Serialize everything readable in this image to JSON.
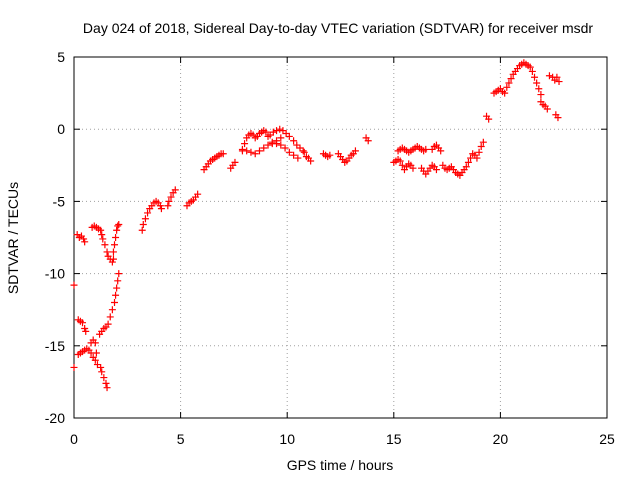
{
  "chart_data": {
    "type": "scatter",
    "title": "Day 024 of 2018, Sidereal Day-to-day VTEC variation (SDTVAR) for receiver msdr",
    "xlabel": "GPS time / hours",
    "ylabel": "SDTVAR / TECUs",
    "xlim": [
      0,
      25
    ],
    "ylim": [
      -20,
      5
    ],
    "xticks": [
      0,
      5,
      10,
      15,
      20,
      25
    ],
    "yticks": [
      -20,
      -15,
      -10,
      -5,
      0,
      5
    ],
    "xtick_labels": [
      "0",
      "5",
      "10",
      "15",
      "20",
      "25"
    ],
    "ytick_labels": [
      "-20",
      "-15",
      "-10",
      "-5",
      "0",
      "5"
    ],
    "grid": true,
    "marker": "plus",
    "color": "#ff0000",
    "series": [
      {
        "name": "SDTVAR",
        "points": [
          [
            0.0,
            -10.8
          ],
          [
            0.0,
            -16.5
          ],
          [
            0.15,
            -7.3
          ],
          [
            0.25,
            -7.5
          ],
          [
            0.35,
            -7.4
          ],
          [
            0.45,
            -7.6
          ],
          [
            0.5,
            -7.8
          ],
          [
            0.2,
            -13.2
          ],
          [
            0.3,
            -13.3
          ],
          [
            0.4,
            -13.4
          ],
          [
            0.5,
            -13.8
          ],
          [
            0.55,
            -14.0
          ],
          [
            0.2,
            -15.6
          ],
          [
            0.3,
            -15.5
          ],
          [
            0.4,
            -15.4
          ],
          [
            0.5,
            -15.3
          ],
          [
            0.6,
            -15.2
          ],
          [
            0.7,
            -15.3
          ],
          [
            0.8,
            -15.5
          ],
          [
            0.9,
            -15.8
          ],
          [
            0.8,
            -14.8
          ],
          [
            0.9,
            -14.6
          ],
          [
            1.0,
            -14.8
          ],
          [
            1.05,
            -15.5
          ],
          [
            1.0,
            -16.0
          ],
          [
            1.1,
            -16.3
          ],
          [
            0.85,
            -6.8
          ],
          [
            0.95,
            -6.7
          ],
          [
            1.05,
            -6.8
          ],
          [
            1.15,
            -6.9
          ],
          [
            1.25,
            -7.0
          ],
          [
            1.3,
            -7.3
          ],
          [
            1.35,
            -7.6
          ],
          [
            1.45,
            -8.0
          ],
          [
            1.55,
            -8.5
          ],
          [
            1.6,
            -8.8
          ],
          [
            1.7,
            -9.0
          ],
          [
            1.8,
            -9.2
          ],
          [
            1.85,
            -9.0
          ],
          [
            1.25,
            -16.5
          ],
          [
            1.3,
            -16.8
          ],
          [
            1.4,
            -17.2
          ],
          [
            1.5,
            -17.6
          ],
          [
            1.55,
            -17.9
          ],
          [
            1.2,
            -14.2
          ],
          [
            1.3,
            -14.0
          ],
          [
            1.4,
            -13.8
          ],
          [
            1.5,
            -13.7
          ],
          [
            1.6,
            -13.5
          ],
          [
            1.7,
            -13.0
          ],
          [
            1.8,
            -12.5
          ],
          [
            1.9,
            -12.0
          ],
          [
            1.95,
            -11.5
          ],
          [
            2.0,
            -11.0
          ],
          [
            2.05,
            -10.5
          ],
          [
            2.1,
            -10.0
          ],
          [
            1.85,
            -8.5
          ],
          [
            1.9,
            -8.0
          ],
          [
            1.95,
            -7.5
          ],
          [
            2.0,
            -7.0
          ],
          [
            2.05,
            -6.7
          ],
          [
            2.1,
            -6.6
          ],
          [
            3.2,
            -7.0
          ],
          [
            3.25,
            -6.6
          ],
          [
            3.35,
            -6.2
          ],
          [
            3.45,
            -5.8
          ],
          [
            3.55,
            -5.5
          ],
          [
            3.65,
            -5.3
          ],
          [
            3.75,
            -5.1
          ],
          [
            3.85,
            -5.0
          ],
          [
            3.95,
            -5.1
          ],
          [
            4.05,
            -5.3
          ],
          [
            4.1,
            -5.5
          ],
          [
            4.4,
            -5.3
          ],
          [
            4.45,
            -5.0
          ],
          [
            4.55,
            -4.7
          ],
          [
            4.65,
            -4.4
          ],
          [
            4.75,
            -4.2
          ],
          [
            5.3,
            -5.3
          ],
          [
            5.4,
            -5.1
          ],
          [
            5.5,
            -5.0
          ],
          [
            5.6,
            -4.9
          ],
          [
            5.7,
            -4.7
          ],
          [
            5.8,
            -4.5
          ],
          [
            6.1,
            -2.8
          ],
          [
            6.2,
            -2.6
          ],
          [
            6.3,
            -2.4
          ],
          [
            6.4,
            -2.2
          ],
          [
            6.5,
            -2.1
          ],
          [
            6.6,
            -2.0
          ],
          [
            6.7,
            -1.9
          ],
          [
            6.8,
            -1.8
          ],
          [
            6.9,
            -1.7
          ],
          [
            7.0,
            -1.7
          ],
          [
            7.35,
            -2.7
          ],
          [
            7.45,
            -2.5
          ],
          [
            7.55,
            -2.3
          ],
          [
            7.9,
            -1.5
          ],
          [
            8.0,
            -1.0
          ],
          [
            8.1,
            -0.6
          ],
          [
            8.2,
            -0.4
          ],
          [
            8.3,
            -0.3
          ],
          [
            8.4,
            -0.4
          ],
          [
            8.5,
            -0.6
          ],
          [
            8.6,
            -0.5
          ],
          [
            8.7,
            -0.3
          ],
          [
            8.8,
            -0.2
          ],
          [
            8.9,
            -0.1
          ],
          [
            9.0,
            -0.2
          ],
          [
            9.1,
            -0.5
          ],
          [
            7.9,
            -1.4
          ],
          [
            8.1,
            -1.5
          ],
          [
            8.3,
            -1.6
          ],
          [
            8.5,
            -1.7
          ],
          [
            8.7,
            -1.5
          ],
          [
            8.9,
            -1.3
          ],
          [
            9.1,
            -1.1
          ],
          [
            9.3,
            -1.0
          ],
          [
            9.5,
            -0.8
          ],
          [
            9.7,
            -0.6
          ],
          [
            9.2,
            -0.4
          ],
          [
            9.35,
            -0.2
          ],
          [
            9.5,
            -0.1
          ],
          [
            9.65,
            0.0
          ],
          [
            9.8,
            -0.1
          ],
          [
            9.95,
            -0.3
          ],
          [
            10.1,
            -0.5
          ],
          [
            10.3,
            -0.8
          ],
          [
            10.45,
            -1.1
          ],
          [
            10.6,
            -1.3
          ],
          [
            10.75,
            -1.5
          ],
          [
            9.3,
            -0.9
          ],
          [
            9.5,
            -1.0
          ],
          [
            9.7,
            -1.1
          ],
          [
            9.9,
            -1.3
          ],
          [
            10.1,
            -1.6
          ],
          [
            10.3,
            -1.8
          ],
          [
            10.5,
            -2.0
          ],
          [
            10.8,
            -1.6
          ],
          [
            10.9,
            -1.9
          ],
          [
            11.0,
            -2.0
          ],
          [
            11.1,
            -2.2
          ],
          [
            11.7,
            -1.7
          ],
          [
            11.8,
            -1.8
          ],
          [
            11.9,
            -1.9
          ],
          [
            12.0,
            -1.8
          ],
          [
            12.4,
            -1.7
          ],
          [
            12.5,
            -1.9
          ],
          [
            12.6,
            -2.1
          ],
          [
            12.7,
            -2.3
          ],
          [
            12.8,
            -2.2
          ],
          [
            12.9,
            -2.0
          ],
          [
            13.0,
            -1.8
          ],
          [
            13.1,
            -1.7
          ],
          [
            13.2,
            -1.5
          ],
          [
            13.7,
            -0.6
          ],
          [
            13.8,
            -0.8
          ],
          [
            15.0,
            -2.3
          ],
          [
            15.1,
            -2.2
          ],
          [
            15.2,
            -2.1
          ],
          [
            15.3,
            -2.2
          ],
          [
            15.4,
            -2.5
          ],
          [
            15.5,
            -2.8
          ],
          [
            15.6,
            -2.6
          ],
          [
            15.7,
            -2.4
          ],
          [
            15.8,
            -2.5
          ],
          [
            15.9,
            -2.7
          ],
          [
            15.2,
            -1.5
          ],
          [
            15.3,
            -1.4
          ],
          [
            15.4,
            -1.3
          ],
          [
            15.5,
            -1.4
          ],
          [
            15.6,
            -1.5
          ],
          [
            15.7,
            -1.6
          ],
          [
            15.8,
            -1.5
          ],
          [
            15.9,
            -1.4
          ],
          [
            16.0,
            -1.3
          ],
          [
            16.1,
            -1.2
          ],
          [
            16.2,
            -1.3
          ],
          [
            16.3,
            -1.4
          ],
          [
            16.4,
            -1.5
          ],
          [
            16.5,
            -1.4
          ],
          [
            16.3,
            -2.7
          ],
          [
            16.4,
            -2.9
          ],
          [
            16.5,
            -3.1
          ],
          [
            16.6,
            -2.9
          ],
          [
            16.7,
            -2.7
          ],
          [
            16.8,
            -2.5
          ],
          [
            16.9,
            -2.6
          ],
          [
            17.0,
            -2.8
          ],
          [
            16.8,
            -1.4
          ],
          [
            16.9,
            -1.2
          ],
          [
            17.0,
            -1.1
          ],
          [
            17.1,
            -1.3
          ],
          [
            17.2,
            -1.5
          ],
          [
            17.3,
            -2.5
          ],
          [
            17.4,
            -2.7
          ],
          [
            17.5,
            -2.8
          ],
          [
            17.6,
            -2.7
          ],
          [
            17.7,
            -2.6
          ],
          [
            17.8,
            -2.8
          ],
          [
            17.9,
            -3.0
          ],
          [
            18.0,
            -3.1
          ],
          [
            18.1,
            -3.2
          ],
          [
            18.2,
            -3.0
          ],
          [
            18.3,
            -2.8
          ],
          [
            18.4,
            -2.6
          ],
          [
            18.5,
            -2.3
          ],
          [
            18.6,
            -2.0
          ],
          [
            18.7,
            -1.7
          ],
          [
            18.8,
            -1.8
          ],
          [
            18.9,
            -2.0
          ],
          [
            19.0,
            -1.6
          ],
          [
            19.1,
            -1.2
          ],
          [
            19.2,
            -0.9
          ],
          [
            19.35,
            0.9
          ],
          [
            19.45,
            0.7
          ],
          [
            19.7,
            2.5
          ],
          [
            19.8,
            2.6
          ],
          [
            19.9,
            2.7
          ],
          [
            20.0,
            2.8
          ],
          [
            20.1,
            2.6
          ],
          [
            20.2,
            2.5
          ],
          [
            20.3,
            2.9
          ],
          [
            20.4,
            3.2
          ],
          [
            20.5,
            3.5
          ],
          [
            20.6,
            3.8
          ],
          [
            20.7,
            4.0
          ],
          [
            20.8,
            4.2
          ],
          [
            20.9,
            4.4
          ],
          [
            21.0,
            4.5
          ],
          [
            21.1,
            4.6
          ],
          [
            21.2,
            4.5
          ],
          [
            21.3,
            4.4
          ],
          [
            21.4,
            4.3
          ],
          [
            21.5,
            4.0
          ],
          [
            21.6,
            3.6
          ],
          [
            21.7,
            3.2
          ],
          [
            21.8,
            2.8
          ],
          [
            21.9,
            2.4
          ],
          [
            21.9,
            1.9
          ],
          [
            22.0,
            1.7
          ],
          [
            22.1,
            1.6
          ],
          [
            22.2,
            1.4
          ],
          [
            22.3,
            3.7
          ],
          [
            22.45,
            3.6
          ],
          [
            22.55,
            3.4
          ],
          [
            22.65,
            3.6
          ],
          [
            22.75,
            3.3
          ],
          [
            22.6,
            1.0
          ],
          [
            22.7,
            0.8
          ]
        ]
      }
    ]
  }
}
